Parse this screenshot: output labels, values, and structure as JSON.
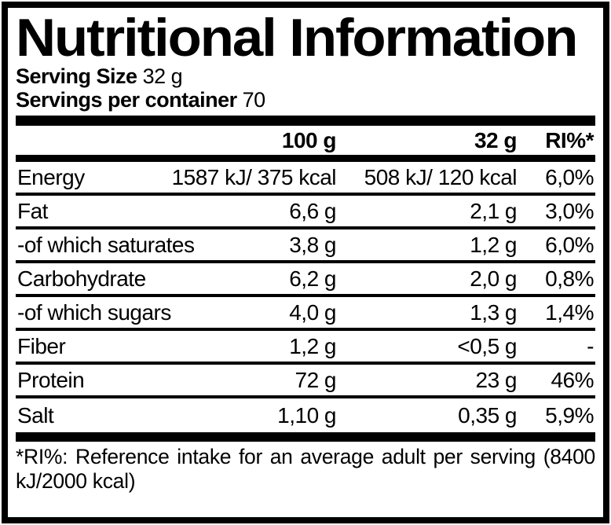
{
  "label": {
    "title": "Nutritional Information",
    "serving_size": {
      "label": "Serving Size",
      "value": "32 g"
    },
    "servings_per_container": {
      "label": "Servings per container",
      "value": "70"
    },
    "table": {
      "columns": {
        "nutrient": "",
        "per_100g": "100 g",
        "per_serving": "32 g",
        "ri_percent": "RI%*"
      },
      "rows": [
        {
          "nutrient": "Energy",
          "per_100g": "1587 kJ/ 375 kcal",
          "per_serving": "508 kJ/ 120 kcal",
          "ri_percent": "6,0%"
        },
        {
          "nutrient": "Fat",
          "per_100g": "6,6 g",
          "per_serving": "2,1 g",
          "ri_percent": "3,0%"
        },
        {
          "nutrient": "-of which saturates",
          "per_100g": "3,8 g",
          "per_serving": "1,2 g",
          "ri_percent": "6,0%"
        },
        {
          "nutrient": "Carbohydrate",
          "per_100g": "6,2 g",
          "per_serving": "2,0 g",
          "ri_percent": "0,8%"
        },
        {
          "nutrient": "-of which sugars",
          "per_100g": "4,0 g",
          "per_serving": "1,3 g",
          "ri_percent": "1,4%"
        },
        {
          "nutrient": "Fiber",
          "per_100g": "1,2 g",
          "per_serving": "<0,5 g",
          "ri_percent": "-"
        },
        {
          "nutrient": "Protein",
          "per_100g": "72 g",
          "per_serving": "23 g",
          "ri_percent": "46%"
        },
        {
          "nutrient": "Salt",
          "per_100g": "1,10 g",
          "per_serving": "0,35 g",
          "ri_percent": "5,9%"
        }
      ]
    },
    "footnote": "*RI%: Reference intake for an average adult per serving (8400 kJ/2000 kcal)",
    "colors": {
      "ink": "#000000",
      "background": "#ffffff"
    }
  }
}
